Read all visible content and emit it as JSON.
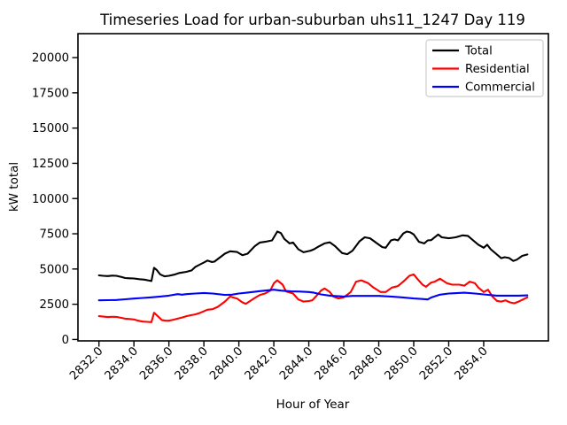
{
  "chart_data": {
    "type": "line",
    "title": "Timeseries Load for urban-suburban uhs11_1247  Day 119",
    "xlabel": "Hour of Year",
    "ylabel": "kW total",
    "xlim": [
      2830.8,
      2857.7
    ],
    "ylim": [
      -100,
      21700
    ],
    "grid": false,
    "background_color": "#ffffff",
    "xticks": {
      "values": [
        2832,
        2834,
        2836,
        2838,
        2840,
        2842,
        2844,
        2846,
        2848,
        2850,
        2852,
        2854
      ],
      "labels": [
        "2832.0",
        "2834.0",
        "2836.0",
        "2838.0",
        "2840.0",
        "2842.0",
        "2844.0",
        "2846.0",
        "2848.0",
        "2850.0",
        "2852.0",
        "2854.0"
      ]
    },
    "yticks": {
      "values": [
        0,
        2500,
        5000,
        7500,
        10000,
        12500,
        15000,
        17500,
        20000
      ],
      "labels": [
        "0",
        "2500",
        "5000",
        "7500",
        "10000",
        "12500",
        "15000",
        "17500",
        "20000"
      ]
    },
    "legend": {
      "position": "upper right",
      "border_color": "#cccccc",
      "entries": [
        {
          "label": "Total",
          "color": "#000000"
        },
        {
          "label": "Residential",
          "color": "#ff0000"
        },
        {
          "label": "Commercial",
          "color": "#0000ff"
        }
      ]
    },
    "series": [
      {
        "name": "Total",
        "color": "#000000",
        "x": [
          2832.0,
          2832.25,
          2832.5,
          2832.75,
          2833.0,
          2833.3,
          2833.5,
          2833.75,
          2834.0,
          2834.3,
          2834.6,
          2834.8,
          2835.0,
          2835.15,
          2835.3,
          2835.5,
          2835.75,
          2836.0,
          2836.3,
          2836.6,
          2837.0,
          2837.3,
          2837.5,
          2837.75,
          2838.0,
          2838.2,
          2838.45,
          2838.6,
          2838.8,
          2839.0,
          2839.2,
          2839.5,
          2839.9,
          2840.2,
          2840.5,
          2840.9,
          2841.2,
          2841.5,
          2841.9,
          2842.2,
          2842.4,
          2842.6,
          2842.9,
          2843.1,
          2843.4,
          2843.7,
          2844.1,
          2844.3,
          2844.5,
          2844.9,
          2845.2,
          2845.5,
          2845.9,
          2846.2,
          2846.5,
          2846.9,
          2847.2,
          2847.5,
          2847.9,
          2848.2,
          2848.4,
          2848.7,
          2848.9,
          2849.1,
          2849.4,
          2849.6,
          2849.8,
          2850.0,
          2850.3,
          2850.6,
          2850.8,
          2851.0,
          2851.4,
          2851.6,
          2852.0,
          2852.4,
          2852.8,
          2853.1,
          2853.4,
          2853.7,
          2854.0,
          2854.2,
          2854.4,
          2854.7,
          2855.0,
          2855.2,
          2855.45,
          2855.7,
          2855.9,
          2856.2,
          2856.5
        ],
        "y": [
          4550,
          4520,
          4500,
          4530,
          4520,
          4430,
          4360,
          4340,
          4330,
          4280,
          4250,
          4200,
          4150,
          5080,
          4940,
          4620,
          4480,
          4520,
          4600,
          4720,
          4800,
          4900,
          5140,
          5300,
          5460,
          5600,
          5500,
          5520,
          5710,
          5900,
          6090,
          6260,
          6210,
          5980,
          6090,
          6610,
          6880,
          6930,
          7030,
          7660,
          7550,
          7140,
          6820,
          6880,
          6400,
          6190,
          6300,
          6400,
          6550,
          6820,
          6890,
          6620,
          6130,
          6050,
          6300,
          6970,
          7250,
          7180,
          6820,
          6550,
          6510,
          7030,
          7100,
          7030,
          7520,
          7660,
          7600,
          7450,
          6930,
          6820,
          7030,
          7050,
          7450,
          7250,
          7180,
          7250,
          7390,
          7350,
          7030,
          6720,
          6510,
          6720,
          6400,
          6090,
          5770,
          5840,
          5780,
          5570,
          5670,
          5930,
          6030
        ]
      },
      {
        "name": "Residential",
        "color": "#ff0000",
        "x": [
          2832.0,
          2832.25,
          2832.5,
          2832.75,
          2833.0,
          2833.25,
          2833.5,
          2833.75,
          2834.0,
          2834.25,
          2834.5,
          2834.75,
          2835.0,
          2835.15,
          2835.3,
          2835.6,
          2835.8,
          2836.0,
          2836.25,
          2836.5,
          2836.75,
          2837.0,
          2837.25,
          2837.5,
          2837.8,
          2838.2,
          2838.5,
          2838.8,
          2839.2,
          2839.5,
          2839.9,
          2840.2,
          2840.4,
          2840.9,
          2841.2,
          2841.5,
          2841.8,
          2842.0,
          2842.2,
          2842.5,
          2842.7,
          2843.1,
          2843.4,
          2843.7,
          2844.0,
          2844.2,
          2844.4,
          2844.7,
          2844.9,
          2845.2,
          2845.4,
          2845.7,
          2846.0,
          2846.4,
          2846.7,
          2847.0,
          2847.4,
          2847.7,
          2848.1,
          2848.4,
          2848.75,
          2849.1,
          2849.4,
          2849.75,
          2850.0,
          2850.2,
          2850.5,
          2850.7,
          2851.0,
          2851.2,
          2851.5,
          2851.9,
          2852.2,
          2852.6,
          2852.9,
          2853.2,
          2853.5,
          2853.7,
          2854.0,
          2854.25,
          2854.5,
          2854.75,
          2855.0,
          2855.25,
          2855.5,
          2855.75,
          2856.0,
          2856.25,
          2856.5
        ],
        "y": [
          1650,
          1620,
          1590,
          1610,
          1600,
          1540,
          1480,
          1450,
          1420,
          1330,
          1270,
          1250,
          1230,
          1900,
          1730,
          1370,
          1340,
          1330,
          1400,
          1480,
          1560,
          1650,
          1720,
          1780,
          1900,
          2110,
          2150,
          2320,
          2690,
          3050,
          2900,
          2630,
          2530,
          2940,
          3160,
          3260,
          3470,
          3990,
          4200,
          3890,
          3410,
          3260,
          2840,
          2690,
          2730,
          2780,
          3050,
          3470,
          3620,
          3370,
          3050,
          2910,
          2990,
          3370,
          4100,
          4200,
          3990,
          3680,
          3370,
          3370,
          3680,
          3790,
          4100,
          4520,
          4620,
          4310,
          3890,
          3740,
          4040,
          4100,
          4310,
          3990,
          3890,
          3890,
          3820,
          4100,
          3990,
          3680,
          3370,
          3530,
          3050,
          2740,
          2690,
          2780,
          2630,
          2570,
          2690,
          2840,
          2990
        ]
      },
      {
        "name": "Commercial",
        "color": "#0000ff",
        "x": [
          2832.0,
          2832.5,
          2833.0,
          2833.5,
          2834.0,
          2834.5,
          2835.0,
          2835.5,
          2836.0,
          2836.5,
          2836.75,
          2837.0,
          2837.5,
          2838.0,
          2838.5,
          2839.2,
          2839.6,
          2840.0,
          2840.5,
          2841.2,
          2842.0,
          2842.4,
          2843.0,
          2843.5,
          2844.0,
          2844.3,
          2844.7,
          2845.2,
          2846.0,
          2846.5,
          2847.0,
          2848.0,
          2848.7,
          2849.3,
          2850.0,
          2850.5,
          2850.8,
          2851.0,
          2851.5,
          2852.0,
          2852.9,
          2853.5,
          2854.0,
          2854.75,
          2855.5,
          2856.0,
          2856.5
        ],
        "y": [
          2780,
          2790,
          2800,
          2850,
          2905,
          2950,
          2990,
          3050,
          3110,
          3220,
          3180,
          3220,
          3260,
          3300,
          3260,
          3160,
          3180,
          3260,
          3330,
          3430,
          3530,
          3470,
          3410,
          3400,
          3370,
          3320,
          3200,
          3110,
          3050,
          3090,
          3090,
          3090,
          3050,
          2990,
          2910,
          2870,
          2840,
          2980,
          3180,
          3260,
          3320,
          3260,
          3200,
          3110,
          3110,
          3110,
          3130
        ]
      }
    ]
  }
}
